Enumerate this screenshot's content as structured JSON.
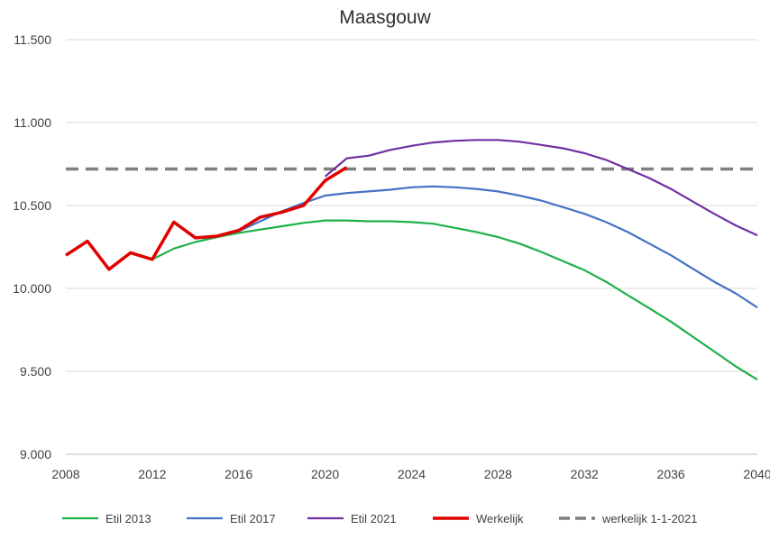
{
  "chart_data": {
    "type": "line",
    "title": "Maasgouw",
    "xlim": [
      2008,
      2040
    ],
    "ylim": [
      9000,
      11500
    ],
    "xticks": [
      2008,
      2012,
      2016,
      2020,
      2024,
      2028,
      2032,
      2036,
      2040
    ],
    "yticks": [
      9000,
      9500,
      10000,
      10500,
      11000,
      11500
    ],
    "ytick_labels": [
      "9.000",
      "9.500",
      "10.000",
      "10.500",
      "11.000",
      "11.500"
    ],
    "grid": "horizontal",
    "legend": "bottom",
    "series": [
      {
        "name": "Etil 2013",
        "color": "#1fb04a",
        "dashed": false,
        "x": [
          2012,
          2013,
          2014,
          2015,
          2016,
          2017,
          2018,
          2019,
          2020,
          2021,
          2022,
          2023,
          2024,
          2025,
          2026,
          2027,
          2028,
          2029,
          2030,
          2031,
          2032,
          2033,
          2034,
          2035,
          2036,
          2037,
          2038,
          2039,
          2040
        ],
        "y": [
          10175,
          10240,
          10280,
          10310,
          10335,
          10355,
          10375,
          10395,
          10410,
          10410,
          10405,
          10405,
          10400,
          10390,
          10365,
          10340,
          10310,
          10270,
          10220,
          10165,
          10110,
          10040,
          9960,
          9880,
          9800,
          9710,
          9620,
          9530,
          9450
        ]
      },
      {
        "name": "Etil 2017",
        "color": "#4472c4",
        "dashed": false,
        "x": [
          2016,
          2017,
          2018,
          2019,
          2020,
          2021,
          2022,
          2023,
          2024,
          2025,
          2026,
          2027,
          2028,
          2029,
          2030,
          2031,
          2032,
          2033,
          2034,
          2035,
          2036,
          2037,
          2038,
          2039,
          2040
        ],
        "y": [
          10345,
          10405,
          10465,
          10515,
          10560,
          10575,
          10585,
          10595,
          10610,
          10615,
          10610,
          10600,
          10585,
          10560,
          10530,
          10490,
          10450,
          10400,
          10340,
          10270,
          10200,
          10120,
          10040,
          9970,
          9885
        ]
      },
      {
        "name": "Etil 2021",
        "color": "#7030a0",
        "dashed": false,
        "x": [
          2020,
          2021,
          2022,
          2023,
          2024,
          2025,
          2026,
          2027,
          2028,
          2029,
          2030,
          2031,
          2032,
          2033,
          2034,
          2035,
          2036,
          2037,
          2038,
          2039,
          2040
        ],
        "y": [
          10675,
          10785,
          10800,
          10835,
          10860,
          10880,
          10890,
          10895,
          10895,
          10885,
          10865,
          10845,
          10815,
          10775,
          10720,
          10665,
          10600,
          10525,
          10450,
          10380,
          10320
        ]
      },
      {
        "name": "Werkelijk",
        "color": "#e00000",
        "dashed": false,
        "x": [
          2008,
          2009,
          2010,
          2011,
          2012,
          2013,
          2014,
          2015,
          2016,
          2017,
          2018,
          2019,
          2020,
          2021
        ],
        "y": [
          10200,
          10285,
          10115,
          10215,
          10175,
          10400,
          10305,
          10315,
          10350,
          10430,
          10460,
          10500,
          10650,
          10730
        ]
      },
      {
        "name": "werkelijk 1-1-2021",
        "color": "#7f7f7f",
        "dashed": true,
        "x": [
          2008,
          2040
        ],
        "y": [
          10720,
          10720
        ]
      }
    ]
  }
}
